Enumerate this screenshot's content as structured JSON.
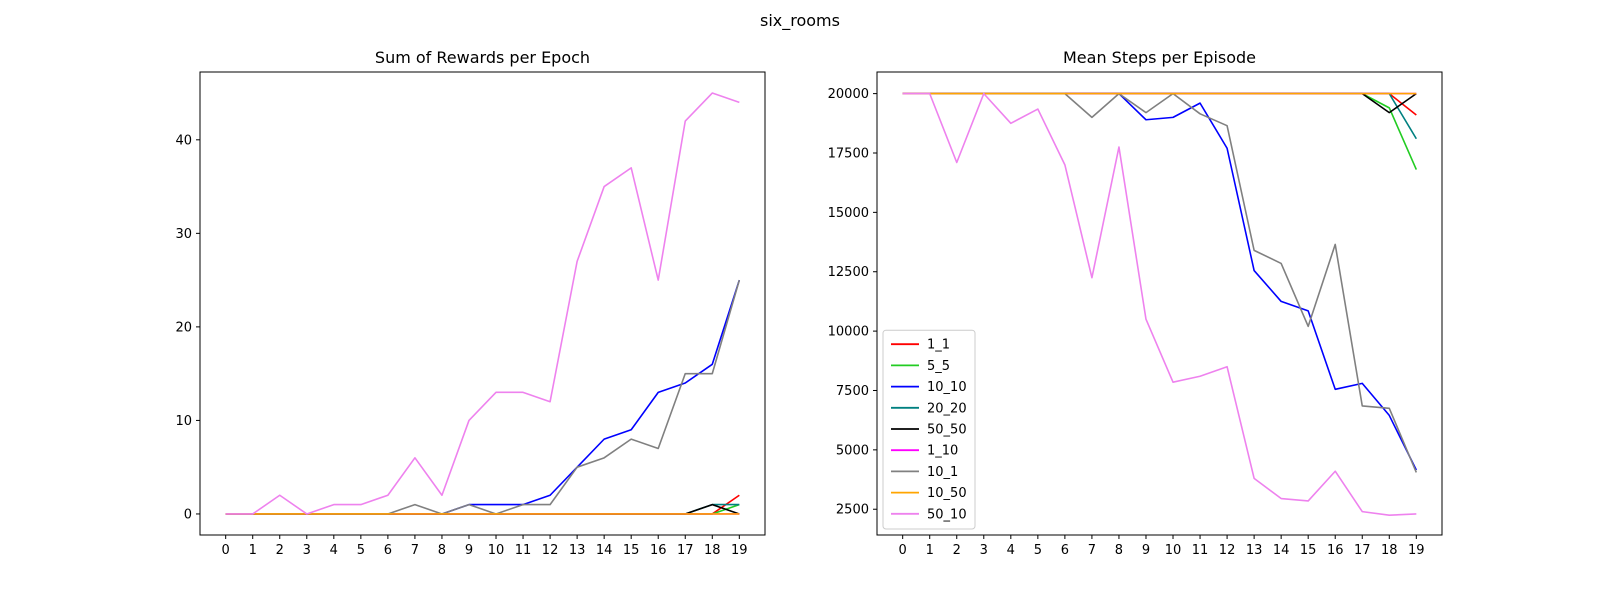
{
  "figure": {
    "suptitle": "six_rooms"
  },
  "chart_data": [
    {
      "type": "line",
      "title": "Sum of Rewards per Epoch",
      "xlabel": "",
      "ylabel": "",
      "x": [
        0,
        1,
        2,
        3,
        4,
        5,
        6,
        7,
        8,
        9,
        10,
        11,
        12,
        13,
        14,
        15,
        16,
        17,
        18,
        19
      ],
      "xlim": [
        -0.95,
        19.95
      ],
      "ylim": [
        -2.25,
        47.25
      ],
      "yticks": [
        0,
        10,
        20,
        30,
        40
      ],
      "grid": false,
      "legend": null,
      "series": [
        {
          "name": "1_1",
          "color": "#ff0000",
          "values": [
            0,
            0,
            0,
            0,
            0,
            0,
            0,
            0,
            0,
            0,
            0,
            0,
            0,
            0,
            0,
            0,
            0,
            0,
            0,
            2
          ]
        },
        {
          "name": "5_5",
          "color": "#22cc22",
          "values": [
            0,
            0,
            0,
            0,
            0,
            0,
            0,
            0,
            0,
            0,
            0,
            0,
            0,
            0,
            0,
            0,
            0,
            0,
            0,
            1
          ]
        },
        {
          "name": "10_10",
          "color": "#0000ff",
          "values": [
            0,
            0,
            0,
            0,
            0,
            0,
            0,
            0,
            0,
            1,
            1,
            1,
            2,
            5,
            8,
            9,
            13,
            14,
            16,
            25
          ]
        },
        {
          "name": "20_20",
          "color": "#008080",
          "values": [
            0,
            0,
            0,
            0,
            0,
            0,
            0,
            0,
            0,
            0,
            0,
            0,
            0,
            0,
            0,
            0,
            0,
            0,
            1,
            1
          ]
        },
        {
          "name": "50_50",
          "color": "#000000",
          "values": [
            0,
            0,
            0,
            0,
            0,
            0,
            0,
            0,
            0,
            0,
            0,
            0,
            0,
            0,
            0,
            0,
            0,
            0,
            1,
            0
          ]
        },
        {
          "name": "1_10",
          "color": "#ff00ff",
          "values": [
            0,
            0,
            0,
            0,
            0,
            0,
            0,
            0,
            0,
            0,
            0,
            0,
            0,
            0,
            0,
            0,
            0,
            0,
            0,
            0
          ]
        },
        {
          "name": "10_1",
          "color": "#808080",
          "values": [
            0,
            0,
            0,
            0,
            0,
            0,
            0,
            1,
            0,
            1,
            0,
            1,
            1,
            5,
            6,
            8,
            7,
            15,
            15,
            25
          ]
        },
        {
          "name": "10_50",
          "color": "#ffa500",
          "values": [
            0,
            0,
            0,
            0,
            0,
            0,
            0,
            0,
            0,
            0,
            0,
            0,
            0,
            0,
            0,
            0,
            0,
            0,
            0,
            0
          ]
        },
        {
          "name": "50_10",
          "color": "#ee82ee",
          "values": [
            0,
            0,
            2,
            0,
            1,
            1,
            2,
            6,
            2,
            10,
            13,
            13,
            12,
            27,
            35,
            37,
            25,
            42,
            45,
            44
          ]
        }
      ]
    },
    {
      "type": "line",
      "title": "Mean Steps per Episode",
      "xlabel": "",
      "ylabel": "",
      "x": [
        0,
        1,
        2,
        3,
        4,
        5,
        6,
        7,
        8,
        9,
        10,
        11,
        12,
        13,
        14,
        15,
        16,
        17,
        18,
        19
      ],
      "xlim": [
        -0.95,
        19.95
      ],
      "ylim": [
        1415,
        20910
      ],
      "yticks": [
        2500,
        5000,
        7500,
        10000,
        12500,
        15000,
        17500,
        20000
      ],
      "grid": false,
      "legend": "lower-left",
      "series": [
        {
          "name": "1_1",
          "color": "#ff0000",
          "values": [
            20000,
            20000,
            20000,
            20000,
            20000,
            20000,
            20000,
            20000,
            20000,
            20000,
            20000,
            20000,
            20000,
            20000,
            20000,
            20000,
            20000,
            20000,
            20000,
            19100
          ]
        },
        {
          "name": "5_5",
          "color": "#22cc22",
          "values": [
            20000,
            20000,
            20000,
            20000,
            20000,
            20000,
            20000,
            20000,
            20000,
            20000,
            20000,
            20000,
            20000,
            20000,
            20000,
            20000,
            20000,
            20000,
            19400,
            16800
          ]
        },
        {
          "name": "10_10",
          "color": "#0000ff",
          "values": [
            20000,
            20000,
            20000,
            20000,
            20000,
            20000,
            20000,
            20000,
            20000,
            18900,
            19000,
            19600,
            17700,
            12550,
            11250,
            10850,
            7550,
            7800,
            6450,
            4150
          ]
        },
        {
          "name": "20_20",
          "color": "#008080",
          "values": [
            20000,
            20000,
            20000,
            20000,
            20000,
            20000,
            20000,
            20000,
            20000,
            20000,
            20000,
            20000,
            20000,
            20000,
            20000,
            20000,
            20000,
            20000,
            20000,
            18100
          ]
        },
        {
          "name": "50_50",
          "color": "#000000",
          "values": [
            20000,
            20000,
            20000,
            20000,
            20000,
            20000,
            20000,
            20000,
            20000,
            20000,
            20000,
            20000,
            20000,
            20000,
            20000,
            20000,
            20000,
            20000,
            19200,
            20000
          ]
        },
        {
          "name": "1_10",
          "color": "#ff00ff",
          "values": [
            20000,
            20000,
            20000,
            20000,
            20000,
            20000,
            20000,
            20000,
            20000,
            20000,
            20000,
            20000,
            20000,
            20000,
            20000,
            20000,
            20000,
            20000,
            20000,
            20000
          ]
        },
        {
          "name": "10_1",
          "color": "#808080",
          "values": [
            20000,
            20000,
            20000,
            20000,
            20000,
            20000,
            20000,
            19000,
            20000,
            19200,
            20000,
            19150,
            18650,
            13400,
            12850,
            10200,
            13650,
            6850,
            6750,
            4050
          ]
        },
        {
          "name": "10_50",
          "color": "#ffa500",
          "values": [
            20000,
            20000,
            20000,
            20000,
            20000,
            20000,
            20000,
            20000,
            20000,
            20000,
            20000,
            20000,
            20000,
            20000,
            20000,
            20000,
            20000,
            20000,
            20000,
            20000
          ]
        },
        {
          "name": "50_10",
          "color": "#ee82ee",
          "values": [
            20000,
            20000,
            17100,
            20000,
            18750,
            19350,
            17000,
            12250,
            17750,
            10500,
            7850,
            8100,
            8500,
            3800,
            2950,
            2850,
            4100,
            2400,
            2250,
            2300
          ]
        }
      ]
    }
  ]
}
